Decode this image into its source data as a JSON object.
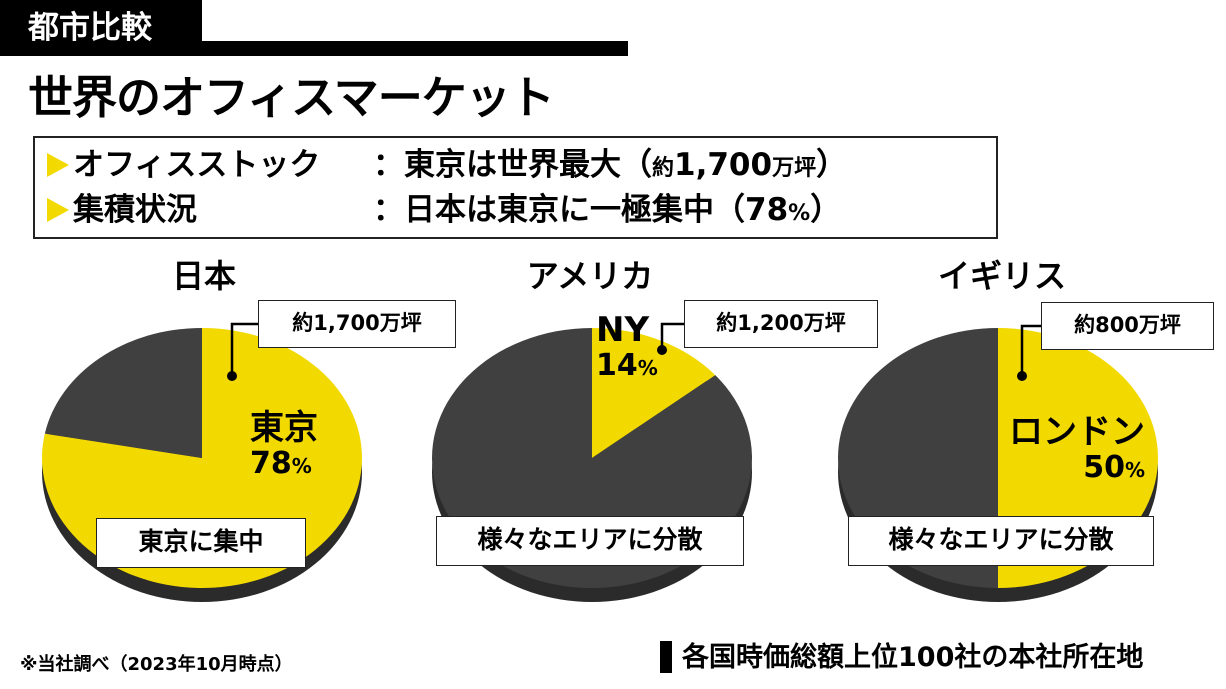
{
  "header": {
    "tag": "都市比較",
    "title": "世界のオフィスマーケット"
  },
  "summary": {
    "items": [
      {
        "label": "オフィスストック",
        "value_prefix": "：東京は世界最大（",
        "value_small1": "約",
        "value_main": "1,700",
        "value_small2": "万坪",
        "value_suffix": "）"
      },
      {
        "label": "集積状況",
        "value_prefix": "：日本は東京に一極集中（",
        "value_small1": "",
        "value_main": "78",
        "value_small2": "%",
        "value_suffix": "）"
      }
    ],
    "accent_color": "#f2d900"
  },
  "chart_data": [
    {
      "type": "pie",
      "title": "日本",
      "slices": [
        {
          "label": "東京",
          "value": 78,
          "color": "#f2d900"
        },
        {
          "label": "",
          "value": 22,
          "color": "#404040"
        }
      ],
      "callout": "約1,700万坪",
      "note": "東京に集中"
    },
    {
      "type": "pie",
      "title": "アメリカ",
      "slices": [
        {
          "label": "NY",
          "value": 14,
          "color": "#f2d900"
        },
        {
          "label": "",
          "value": 86,
          "color": "#404040"
        }
      ],
      "callout": "約1,200万坪",
      "note": "様々なエリアに分散"
    },
    {
      "type": "pie",
      "title": "イギリス",
      "slices": [
        {
          "label": "ロンドン",
          "value": 50,
          "color": "#f2d900"
        },
        {
          "label": "",
          "value": 50,
          "color": "#404040"
        }
      ],
      "callout": "約800万坪",
      "note": "様々なエリアに分散"
    }
  ],
  "labels": {
    "tokyo_pct": "78",
    "ny_pct": "14",
    "london_pct": "50",
    "pct_unit": "%"
  },
  "footer": {
    "note": "※当社調べ（2023年10月時点）",
    "source": "各国時価総額上位100社の本社所在地"
  }
}
